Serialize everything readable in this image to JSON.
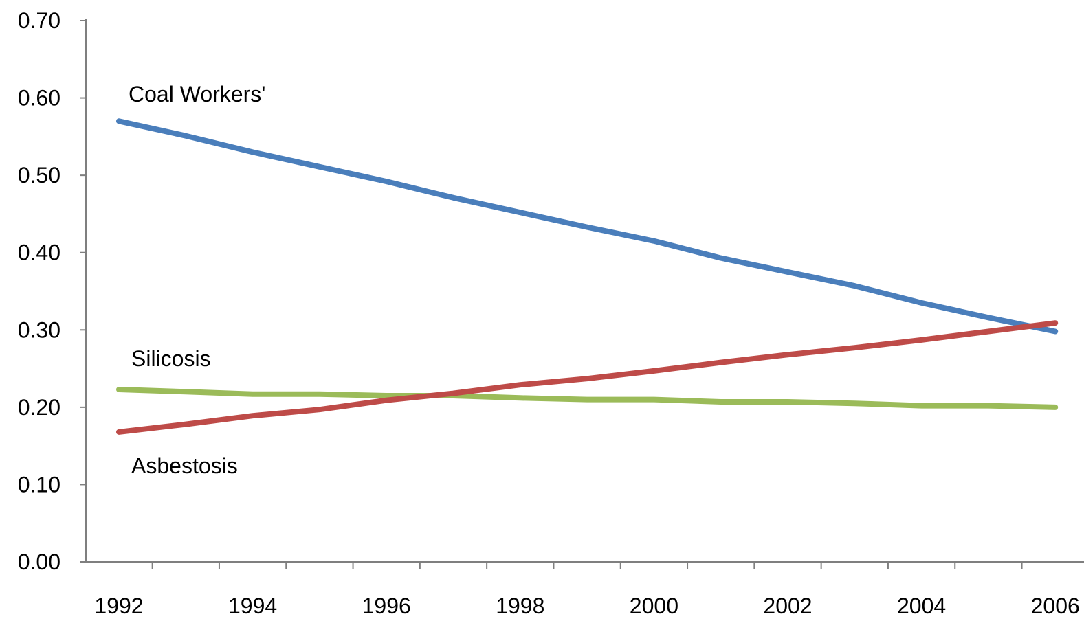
{
  "chart_data": {
    "type": "line",
    "x": [
      1992,
      1993,
      1994,
      1995,
      1996,
      1997,
      1998,
      1999,
      2000,
      2001,
      2002,
      2003,
      2004,
      2005,
      2006
    ],
    "x_tick_labels": [
      "1992",
      "1994",
      "1996",
      "1998",
      "2000",
      "2002",
      "2004",
      "2006"
    ],
    "y_tick_labels": [
      "0.00",
      "0.10",
      "0.20",
      "0.30",
      "0.40",
      "0.50",
      "0.60",
      "0.70"
    ],
    "ylim": [
      0,
      0.7
    ],
    "grid": false,
    "legend": "none",
    "series": [
      {
        "name": "Coal Workers'",
        "color": "#4a7ebb",
        "values": [
          0.57,
          0.551,
          0.53,
          0.511,
          0.492,
          0.471,
          0.452,
          0.433,
          0.415,
          0.393,
          0.375,
          0.357,
          0.335,
          0.316,
          0.298
        ]
      },
      {
        "name": "Silicosis",
        "color": "#9bbb59",
        "values": [
          0.223,
          0.22,
          0.217,
          0.217,
          0.215,
          0.215,
          0.212,
          0.21,
          0.21,
          0.207,
          0.207,
          0.205,
          0.202,
          0.202,
          0.2
        ]
      },
      {
        "name": "Asbestosis",
        "color": "#be4b48",
        "values": [
          0.168,
          0.178,
          0.189,
          0.197,
          0.209,
          0.218,
          0.229,
          0.237,
          0.247,
          0.258,
          0.268,
          0.277,
          0.287,
          0.298,
          0.309
        ]
      }
    ]
  }
}
